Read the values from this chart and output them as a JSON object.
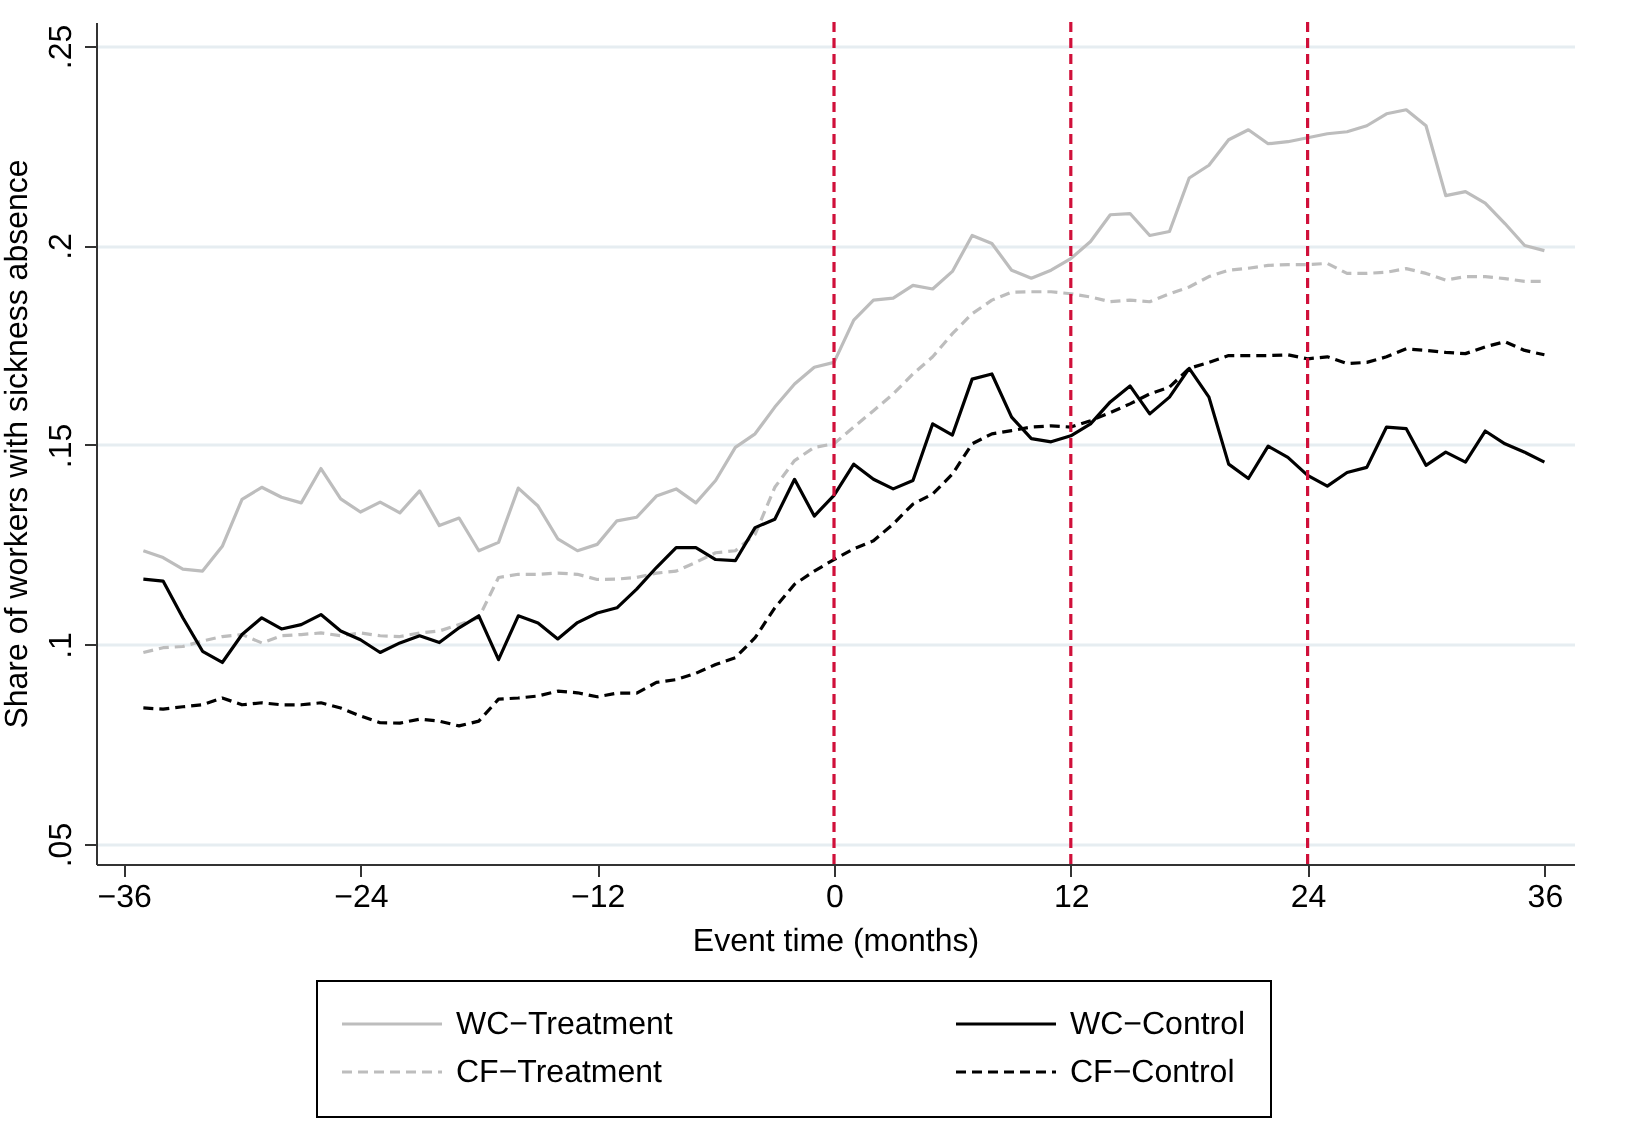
{
  "chart_data": {
    "type": "line",
    "xlabel": "Event time (months)",
    "ylabel": "Share of workers with sickness absence",
    "x": [
      -35,
      -34,
      -33,
      -32,
      -31,
      -30,
      -29,
      -28,
      -27,
      -26,
      -25,
      -24,
      -23,
      -22,
      -21,
      -20,
      -19,
      -18,
      -17,
      -16,
      -15,
      -14,
      -13,
      -12,
      -11,
      -10,
      -9,
      -8,
      -7,
      -6,
      -5,
      -4,
      -3,
      -2,
      -1,
      0,
      1,
      2,
      3,
      4,
      5,
      6,
      7,
      8,
      9,
      10,
      11,
      12,
      13,
      14,
      15,
      16,
      17,
      18,
      19,
      20,
      21,
      22,
      23,
      24,
      25,
      26,
      27,
      28,
      29,
      30,
      31,
      32,
      33,
      34,
      35,
      36
    ],
    "series": [
      {
        "name": "WC−Treatment",
        "color": "#bdbdbd",
        "line_style": "solid",
        "values": [
          0.1235,
          0.1218,
          0.1189,
          0.1184,
          0.1246,
          0.1364,
          0.1394,
          0.1369,
          0.1355,
          0.1441,
          0.1365,
          0.1332,
          0.1357,
          0.133,
          0.1385,
          0.1298,
          0.1317,
          0.1235,
          0.1256,
          0.1392,
          0.1347,
          0.1265,
          0.1235,
          0.1251,
          0.131,
          0.1319,
          0.1372,
          0.139,
          0.1355,
          0.1411,
          0.1494,
          0.1528,
          0.1595,
          0.1653,
          0.1695,
          0.1707,
          0.1813,
          0.1863,
          0.1868,
          0.19,
          0.1891,
          0.1935,
          0.2025,
          0.2005,
          0.1938,
          0.1918,
          0.1938,
          0.1967,
          0.201,
          0.2077,
          0.208,
          0.2025,
          0.2035,
          0.2169,
          0.2201,
          0.2265,
          0.229,
          0.2255,
          0.226,
          0.227,
          0.228,
          0.2285,
          0.23,
          0.233,
          0.234,
          0.23,
          0.2125,
          0.2135,
          0.2106,
          0.2055,
          0.2,
          0.1987
        ]
      },
      {
        "name": "CF−Treatment",
        "color": "#bdbdbd",
        "line_style": "dashed",
        "values": [
          0.098,
          0.0992,
          0.0995,
          0.1009,
          0.102,
          0.1025,
          0.1004,
          0.1022,
          0.1025,
          0.1029,
          0.1022,
          0.1029,
          0.1022,
          0.102,
          0.1029,
          0.1034,
          0.105,
          0.1067,
          0.1168,
          0.1176,
          0.1176,
          0.1179,
          0.1176,
          0.1163,
          0.1164,
          0.1168,
          0.1179,
          0.1184,
          0.1206,
          0.123,
          0.1235,
          0.1276,
          0.1394,
          0.1461,
          0.1494,
          0.1503,
          0.1545,
          0.1586,
          0.1628,
          0.1678,
          0.1721,
          0.1779,
          0.1829,
          0.1863,
          0.1883,
          0.1884,
          0.1884,
          0.1879,
          0.1871,
          0.1859,
          0.1863,
          0.1859,
          0.1879,
          0.1896,
          0.1922,
          0.1938,
          0.1943,
          0.195,
          0.1952,
          0.1952,
          0.1955,
          0.193,
          0.193,
          0.1933,
          0.1942,
          0.193,
          0.1913,
          0.1922,
          0.1922,
          0.1917,
          0.191,
          0.191
        ]
      },
      {
        "name": "WC−Control",
        "color": "#000000",
        "line_style": "solid",
        "values": [
          0.1164,
          0.1159,
          0.1067,
          0.0983,
          0.0955,
          0.1025,
          0.1067,
          0.1039,
          0.105,
          0.1075,
          0.1034,
          0.1012,
          0.098,
          0.1004,
          0.1022,
          0.1005,
          0.1042,
          0.1072,
          0.0962,
          0.1072,
          0.1054,
          0.1014,
          0.1055,
          0.1079,
          0.1092,
          0.1139,
          0.1193,
          0.1243,
          0.1243,
          0.1213,
          0.121,
          0.1293,
          0.1314,
          0.1414,
          0.1322,
          0.1374,
          0.1452,
          0.1414,
          0.139,
          0.1411,
          0.1553,
          0.1525,
          0.1665,
          0.1678,
          0.157,
          0.1516,
          0.1508,
          0.1523,
          0.1553,
          0.1608,
          0.1648,
          0.1578,
          0.162,
          0.1692,
          0.162,
          0.1452,
          0.1416,
          0.1497,
          0.1469,
          0.1424,
          0.1397,
          0.1431,
          0.1444,
          0.1545,
          0.1541,
          0.1449,
          0.1482,
          0.1457,
          0.1535,
          0.1503,
          0.1482,
          0.1457
        ]
      },
      {
        "name": "CF−Control",
        "color": "#000000",
        "line_style": "dashed",
        "values": [
          0.0841,
          0.0838,
          0.0844,
          0.0849,
          0.0866,
          0.0849,
          0.0854,
          0.0849,
          0.0849,
          0.0854,
          0.0841,
          0.0821,
          0.0804,
          0.0803,
          0.0813,
          0.0808,
          0.0796,
          0.0808,
          0.0863,
          0.0866,
          0.0871,
          0.0883,
          0.0879,
          0.0869,
          0.0878,
          0.0878,
          0.0905,
          0.0912,
          0.0928,
          0.095,
          0.0967,
          0.1017,
          0.1092,
          0.1151,
          0.1184,
          0.1213,
          0.124,
          0.126,
          0.1302,
          0.1352,
          0.1377,
          0.1427,
          0.1503,
          0.1528,
          0.1536,
          0.1545,
          0.1548,
          0.1545,
          0.1561,
          0.1581,
          0.1603,
          0.1628,
          0.1645,
          0.1692,
          0.1707,
          0.1724,
          0.1724,
          0.1724,
          0.1726,
          0.1716,
          0.1721,
          0.1704,
          0.1707,
          0.1721,
          0.1741,
          0.1737,
          0.1732,
          0.1729,
          0.1746,
          0.1759,
          0.1737,
          0.1726
        ]
      }
    ],
    "xlim": [
      -37.4,
      37.5
    ],
    "xticks": [
      -36,
      -24,
      -12,
      0,
      12,
      24,
      36
    ],
    "ylim": [
      0.045,
      0.256
    ],
    "yticks": [
      {
        "value": 0.05,
        "label": ".05"
      },
      {
        "value": 0.1,
        "label": ".1"
      },
      {
        "value": 0.15,
        "label": ".15"
      },
      {
        "value": 0.2,
        "label": ".2"
      },
      {
        "value": 0.25,
        "label": ".25"
      }
    ],
    "grid": "y",
    "legend": "bottom",
    "ref_lines": [
      {
        "axis": "x",
        "value": 0,
        "color": "#d0103a",
        "line_style": "dashed"
      },
      {
        "axis": "x",
        "value": 12,
        "color": "#d0103a",
        "line_style": "dashed"
      },
      {
        "axis": "x",
        "value": 24,
        "color": "#d0103a",
        "line_style": "dashed"
      }
    ]
  }
}
